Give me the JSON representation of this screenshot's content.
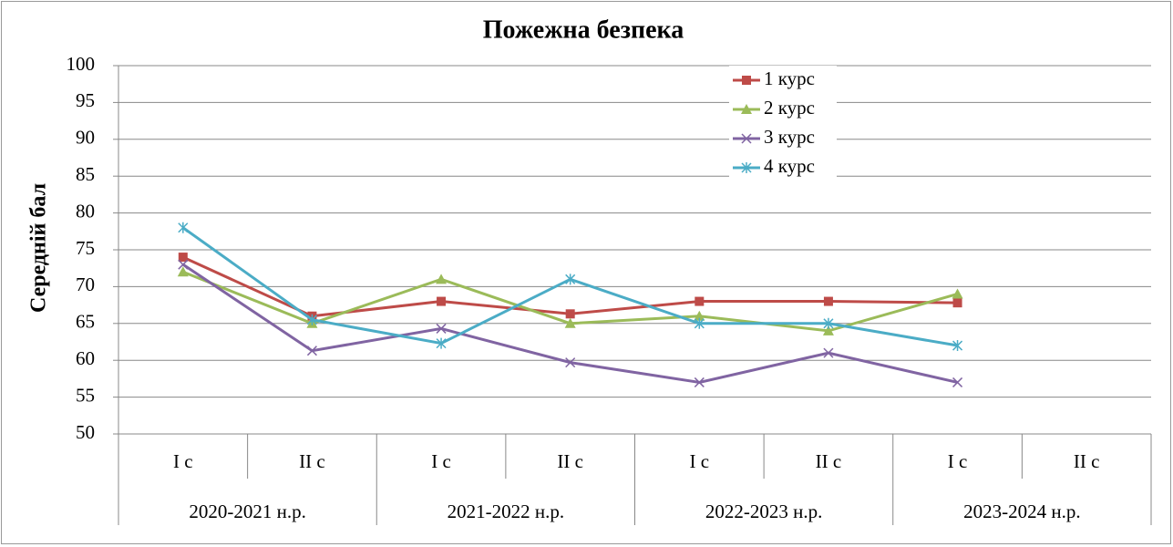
{
  "chart_data": {
    "type": "line",
    "title": "Пожежна безпека",
    "y_label": "Середній бал",
    "categories": [
      "I с",
      "II с",
      "I с",
      "II с",
      "I с",
      "II с",
      "I с",
      "II с"
    ],
    "groups": [
      "2020-2021 н.р.",
      "2021-2022 н.р.",
      "2022-2023 н.р.",
      "2023-2024 н.р."
    ],
    "series": [
      {
        "name": "1 курс",
        "color": "#be4b48",
        "marker": "square",
        "values": [
          74,
          66,
          68,
          66.3,
          68,
          68,
          67.8,
          null
        ]
      },
      {
        "name": "2 курс",
        "color": "#9bbb59",
        "marker": "triangle",
        "values": [
          72,
          65,
          71,
          65,
          66,
          64,
          69,
          null
        ]
      },
      {
        "name": "3 курс",
        "color": "#8064a2",
        "marker": "x",
        "values": [
          73,
          61.3,
          64.3,
          59.7,
          57,
          61,
          57,
          null
        ]
      },
      {
        "name": "4 курс",
        "color": "#4bacc6",
        "marker": "star",
        "values": [
          78,
          65.5,
          62.3,
          71,
          65,
          65,
          62,
          null
        ]
      }
    ],
    "ylim": [
      50,
      100
    ],
    "yticks": [
      50,
      55,
      60,
      65,
      70,
      75,
      80,
      85,
      90,
      95,
      100
    ],
    "grid": true
  }
}
